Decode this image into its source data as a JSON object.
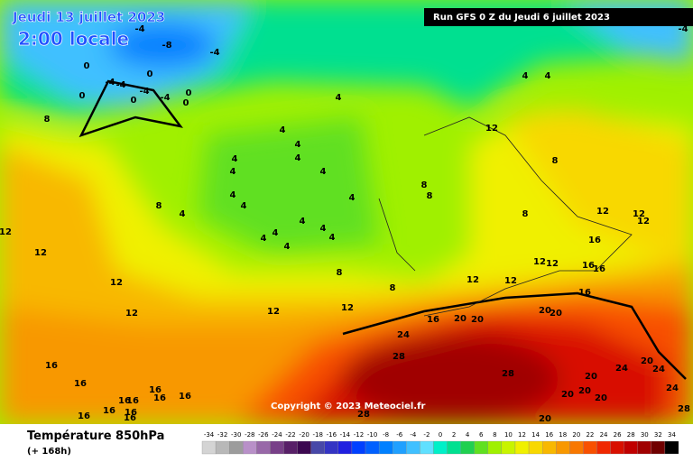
{
  "header": {
    "date": "Jeudi 13 juillet 2023",
    "time": "2:00 locale",
    "run": "Run GFS 0 Z du Jeudi 6 juillet 2023"
  },
  "map": {
    "copyright": "Copyright © 2023 Meteociel.fr",
    "contour_labels": [
      -4,
      -8,
      -4,
      0,
      0,
      -4,
      -4,
      -4,
      -4,
      0,
      0,
      0,
      0,
      -4,
      4,
      4,
      4,
      4,
      4,
      4,
      4,
      4,
      4,
      4,
      4,
      4,
      4,
      4,
      4,
      4,
      4,
      4,
      8,
      12,
      8,
      8,
      8,
      8,
      4,
      12,
      12,
      12,
      12,
      12,
      8,
      16,
      12,
      12,
      16,
      16,
      8,
      8,
      12,
      12,
      12,
      16,
      12,
      12,
      12,
      16,
      20,
      20,
      20,
      20,
      24,
      28,
      28,
      24,
      20,
      24,
      20,
      16,
      16,
      24,
      20,
      20,
      20,
      16,
      16,
      16,
      16,
      16,
      16,
      16,
      16,
      16,
      28,
      28,
      20
    ]
  },
  "legend": {
    "title": "Température 850hPa",
    "subtitle": "(+ 168h)",
    "levels": [
      -34,
      -32,
      -30,
      -28,
      -26,
      -24,
      -22,
      -20,
      -18,
      -16,
      -14,
      -12,
      -10,
      -8,
      -6,
      -4,
      -2,
      0,
      2,
      4,
      6,
      8,
      10,
      12,
      14,
      16,
      18,
      20,
      22,
      24,
      26,
      28,
      30,
      32,
      34
    ],
    "colors": [
      "#d4d4d4",
      "#b8b8b8",
      "#9c9c9c",
      "#b890c8",
      "#9868a8",
      "#784088",
      "#582068",
      "#3c0850",
      "#4848a8",
      "#3434c4",
      "#2020e0",
      "#0040ff",
      "#0060ff",
      "#0080ff",
      "#20a0ff",
      "#40c0ff",
      "#60e0ff",
      "#00f0c8",
      "#00e090",
      "#20d050",
      "#60e020",
      "#a0f000",
      "#c8f400",
      "#f0f000",
      "#f8d800",
      "#f8b800",
      "#f89800",
      "#f87800",
      "#f85000",
      "#f02800",
      "#d81000",
      "#c00000",
      "#a00000",
      "#700000",
      "#000000"
    ]
  }
}
